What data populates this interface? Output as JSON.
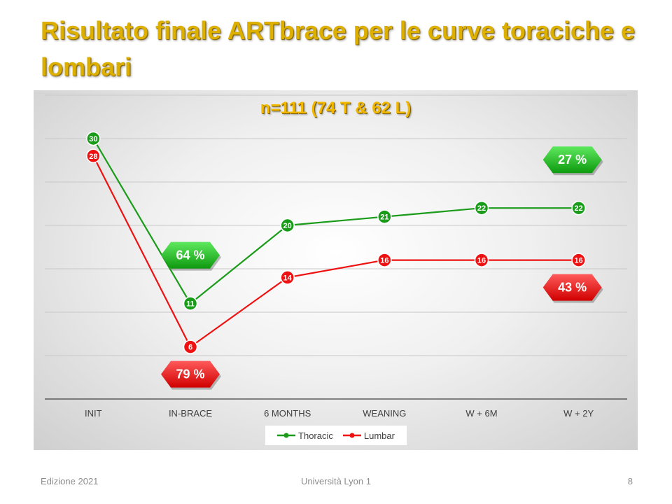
{
  "slide": {
    "title": "Risultato finale ARTbrace per le curve toraciche e lombari",
    "footer_left": "Edizione 2021",
    "footer_center": "Università Lyon 1",
    "footer_right": "8"
  },
  "colors": {
    "thoracic": "#1a9c1a",
    "lumbar": "#ee1111",
    "title": "#ddb000"
  },
  "chart_data": {
    "type": "line",
    "title": "n=111 (74 T & 62 L)",
    "categories": [
      "INIT",
      "IN-BRACE",
      "6 MONTHS",
      "WEANING",
      "W + 6M",
      "W + 2Y"
    ],
    "series": [
      {
        "name": "Thoracic",
        "values": [
          30,
          11,
          20,
          21,
          22,
          22
        ]
      },
      {
        "name": "Lumbar",
        "values": [
          28,
          6,
          14,
          16,
          16,
          16
        ]
      }
    ],
    "ylim": [
      0,
      35
    ],
    "grid": true,
    "legend": "bottom",
    "annotations": [
      {
        "text": "64 %",
        "series": "Thoracic",
        "near": "IN-BRACE",
        "place": "above"
      },
      {
        "text": "79 %",
        "series": "Lumbar",
        "near": "IN-BRACE",
        "place": "below"
      },
      {
        "text": "27 %",
        "series": "Thoracic",
        "near": "W + 2Y",
        "place": "above"
      },
      {
        "text": "43 %",
        "series": "Lumbar",
        "near": "W + 2Y",
        "place": "below"
      }
    ]
  }
}
